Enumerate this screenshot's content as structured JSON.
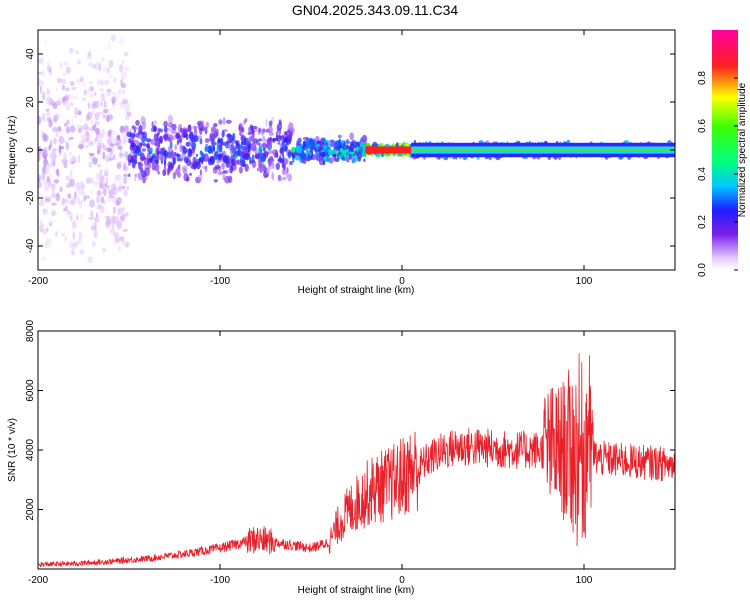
{
  "title": "GN04.2025.343.09.11.C34",
  "colors": {
    "snr_line": "#e8202a",
    "axis": "#000000"
  },
  "chart_data": [
    {
      "type": "heatmap",
      "xlabel": "Height of straight line (km)",
      "ylabel": "Frequency (Hz)",
      "xlim": [
        -200,
        150
      ],
      "ylim": [
        -50,
        50
      ],
      "xticks": [
        -200,
        -100,
        0,
        100
      ],
      "yticks": [
        -40,
        -20,
        0,
        20,
        40
      ],
      "colorbar": {
        "label": "Normalized spectral amplitude",
        "range": [
          0,
          1
        ],
        "ticks": [
          0.0,
          0.2,
          0.4,
          0.6,
          0.8
        ],
        "colormap": "rainbow (white-purple-blue-cyan-green-yellow-red-magenta)"
      },
      "description_regions": [
        {
          "x_range": [
            -200,
            -150
          ],
          "freq_halfwidth": 50,
          "amplitude": 0.1
        },
        {
          "x_range": [
            -150,
            -60
          ],
          "freq_halfwidth": 14,
          "amplitude": 0.3
        },
        {
          "x_range": [
            -60,
            -20
          ],
          "freq_halfwidth": 6,
          "amplitude": 0.45
        },
        {
          "x_range": [
            -20,
            5
          ],
          "freq_halfwidth": 2,
          "amplitude": 0.9
        },
        {
          "x_range": [
            5,
            150
          ],
          "freq_halfwidth": 3,
          "amplitude": 0.5
        }
      ]
    },
    {
      "type": "line",
      "xlabel": "Height of straight line (km)",
      "ylabel": "SNR (10 * v/v)",
      "xlim": [
        -200,
        150
      ],
      "ylim": [
        0,
        8000
      ],
      "xticks": [
        -200,
        -100,
        0,
        100
      ],
      "yticks": [
        2000,
        4000,
        6000,
        8000
      ],
      "series": [
        {
          "x": [
            -200,
            -180,
            -160,
            -140,
            -120,
            -100,
            -90,
            -80,
            -70,
            -60,
            -50,
            -40,
            -35,
            -30,
            -25,
            -20,
            -15,
            -10,
            -5,
            0,
            5,
            10,
            15,
            20,
            30,
            40,
            50,
            60,
            70,
            80,
            85,
            90,
            95,
            100,
            105,
            110,
            120,
            130,
            140,
            150
          ],
          "y": [
            150,
            180,
            250,
            350,
            500,
            700,
            850,
            1000,
            900,
            800,
            700,
            900,
            1500,
            1900,
            2200,
            2500,
            2700,
            2800,
            2900,
            3100,
            3300,
            3500,
            3700,
            3900,
            4100,
            4100,
            4050,
            4000,
            4000,
            4000,
            4050,
            4000,
            3950,
            3900,
            3800,
            3700,
            3650,
            3600,
            3550,
            3500
          ]
        }
      ]
    }
  ]
}
